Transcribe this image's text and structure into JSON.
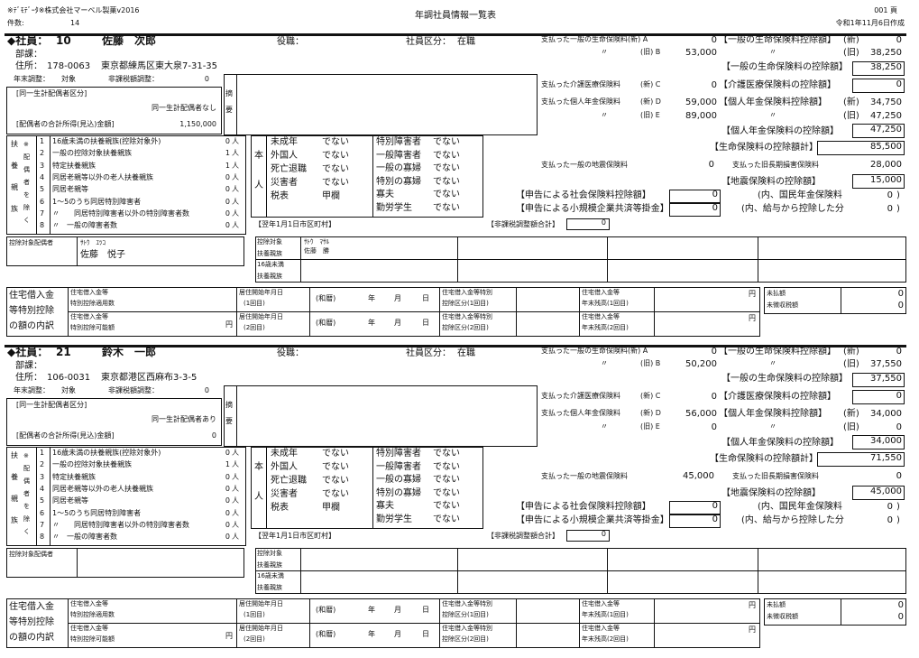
{
  "header": {
    "company": "※ﾃﾞﾓﾃﾞｰﾀ※株式会社マーベル製菓v2016",
    "count_label": "件数:",
    "count": "14",
    "title": "年調社員情報一覧表",
    "page": "001 頁",
    "created": "令和1年11月6日作成"
  },
  "labels": {
    "emp_prefix": "◆社員：",
    "position": "役職：",
    "category": "社員区分：",
    "dept": "部課：",
    "address": "住所：",
    "nenmatsu": "年末調整：",
    "hikazei_adj": "非課税額調整：",
    "spouse_kubun": "[同一生計配偶者区分]",
    "spouse_income": "[配偶者の合計所得(見込)金額]",
    "tekiyo_1": "摘",
    "tekiyo_2": "要",
    "paid_life_new": "支払った一般の生命保険料(新) A",
    "ditto": "〃",
    "old_b": "(旧) B",
    "paid_care": "支払った介護医療保険料",
    "new_c": "(新) C",
    "paid_pension": "支払った個人年金保険料",
    "new_d": "(新) D",
    "old_e": "(旧) E",
    "life_ded": "【一般の生命保険料控除額】",
    "new": "(新)",
    "old": "(旧)",
    "life_ded_total": "【一般の生命保険料の控除額】",
    "care_ded": "【介護医療保険料の控除額】",
    "pension_ded": "【個人年金保険料控除額】",
    "pension_ded_total": "【個人年金保険料の控除額】",
    "life_total": "【生命保険料の控除額計】",
    "paid_quake": "支払った一般の地震保険料",
    "paid_old_long": "支払った旧長期損害保険料",
    "quake_ded": "【地震保険料の控除額】",
    "social": "【申告による社会保険料控除額】",
    "small_biz": "【申告による小規模企業共済等掛金】",
    "nenkin": "(内、国民年金保険料",
    "kyuyo": "(内、給与から控除した分",
    "close_paren": ")",
    "hikazei_total": "【非課税調整額合計】",
    "municipality": "【翌年1月1日市区町村】",
    "dep_side": [
      "扶",
      "養",
      "親",
      "族"
    ],
    "dep_note": [
      "※",
      "配",
      "偶",
      "者",
      "を",
      "除",
      "く"
    ],
    "dep_rows": [
      "16歳未満の扶養親族(控除対象外)",
      "一般の控除対象扶養親族",
      "特定扶養親族",
      "同居老親等以外の老人扶養親族",
      "同居老親等",
      "1～5のうち同居特別障害者",
      "〃　　同居特別障害者以外の特別障害者数",
      "〃　一般の障害者数"
    ],
    "person_unit": "人",
    "self_side": [
      "本",
      "人"
    ],
    "self_left": [
      "未成年",
      "外国人",
      "死亡退職",
      "災害者",
      "税表"
    ],
    "self_right": [
      "特別障害者",
      "一般障害者",
      "一般の寡婦",
      "特別の寡婦",
      "寡夫",
      "勤労学生"
    ],
    "spouse_target": "控除対象配偶者",
    "dep_target_1": "控除対象",
    "dep_target_2": "扶養親族",
    "under16_1": "16歳未満",
    "under16_2": "扶養親族",
    "housing_1": "住宅借入金",
    "housing_2": "等特別控除",
    "housing_3": "の額の内訳",
    "h_count_1": "住宅借入金等",
    "h_count_2": "特別控除適用数",
    "h_possible_1": "住宅借入金等",
    "h_possible_2": "特別控除可能額",
    "yen": "円",
    "h_start1_1": "居住開始年月日",
    "h_start1_2": "(1回目)",
    "h_start2_1": "居住開始年月日",
    "h_start2_2": "(2回目)",
    "wareki": "(和暦)",
    "year": "年",
    "month": "月",
    "day": "日",
    "h_kubun1_1": "住宅借入金等特別",
    "h_kubun1_2": "控除区分(1回目)",
    "h_kubun2_1": "住宅借入金等特別",
    "h_kubun2_2": "控除区分(2回目)",
    "h_bal1_1": "住宅借入金等",
    "h_bal1_2": "年末残高(1回目)",
    "h_bal2_1": "住宅借入金等",
    "h_bal2_2": "年末残高(2回目)",
    "unpaid": "未払額",
    "uncollected": "未徴収税額"
  },
  "employees": [
    {
      "id": "10",
      "name": "佐藤　次郎",
      "position": "",
      "category": "在職",
      "dept": "",
      "zip": "178-0063",
      "address": "東京都練馬区東大泉7-31-35",
      "nenmatsu": "対象",
      "hikazei_adj": "0",
      "spouse_kubun": "同一生計配偶者なし",
      "spouse_income": "1,150,000",
      "A": "0",
      "B": "53,000",
      "life_new": "0",
      "life_old": "38,250",
      "life_ded_total": "38,250",
      "C": "0",
      "care_ded": "0",
      "D": "59,000",
      "E": "89,000",
      "pension_new": "34,750",
      "pension_old": "47,250",
      "pension_ded_total": "47,250",
      "life_total": "85,500",
      "paid_quake": "0",
      "paid_old_long": "28,000",
      "quake_ded": "15,000",
      "social": "0",
      "small_biz": "0",
      "nenkin": "0",
      "kyuyo": "0",
      "hikazei_total": "0",
      "dep_counts": [
        "0",
        "1",
        "1",
        "0",
        "0",
        "0",
        "0",
        "0"
      ],
      "self_left": [
        "でない",
        "でない",
        "でない",
        "でない",
        "甲欄"
      ],
      "self_right": [
        "でない",
        "でない",
        "でない",
        "でない",
        "でない",
        "でない"
      ],
      "spouse_kana": "ｻﾄｳ　ｴﾂｺ",
      "spouse_name": "佐藤　悦子",
      "dep_kana": "ｻﾄｳ　ﾏｻﾙ",
      "dep_name": "佐藤　勝",
      "unpaid": "0",
      "uncollected": "0"
    },
    {
      "id": "21",
      "name": "鈴木　一郎",
      "position": "",
      "category": "在職",
      "dept": "",
      "zip": "106-0031",
      "address": "東京都港区西麻布3-3-5",
      "nenmatsu": "対象",
      "hikazei_adj": "0",
      "spouse_kubun": "同一生計配偶者あり",
      "spouse_income": "0",
      "A": "0",
      "B": "50,200",
      "life_new": "0",
      "life_old": "37,550",
      "life_ded_total": "37,550",
      "C": "0",
      "care_ded": "0",
      "D": "56,000",
      "E": "0",
      "pension_new": "34,000",
      "pension_old": "0",
      "pension_ded_total": "34,000",
      "life_total": "71,550",
      "paid_quake": "45,000",
      "paid_old_long": "0",
      "quake_ded": "45,000",
      "social": "0",
      "small_biz": "0",
      "nenkin": "0",
      "kyuyo": "0",
      "hikazei_total": "0",
      "dep_counts": [
        "0",
        "1",
        "0",
        "0",
        "0",
        "0",
        "0",
        "0"
      ],
      "self_left": [
        "でない",
        "でない",
        "でない",
        "でない",
        "甲欄"
      ],
      "self_right": [
        "でない",
        "でない",
        "でない",
        "でない",
        "でない",
        "でない"
      ],
      "spouse_kana": "",
      "spouse_name": "",
      "dep_kana": "",
      "dep_name": "",
      "unpaid": "0",
      "uncollected": "0"
    }
  ]
}
